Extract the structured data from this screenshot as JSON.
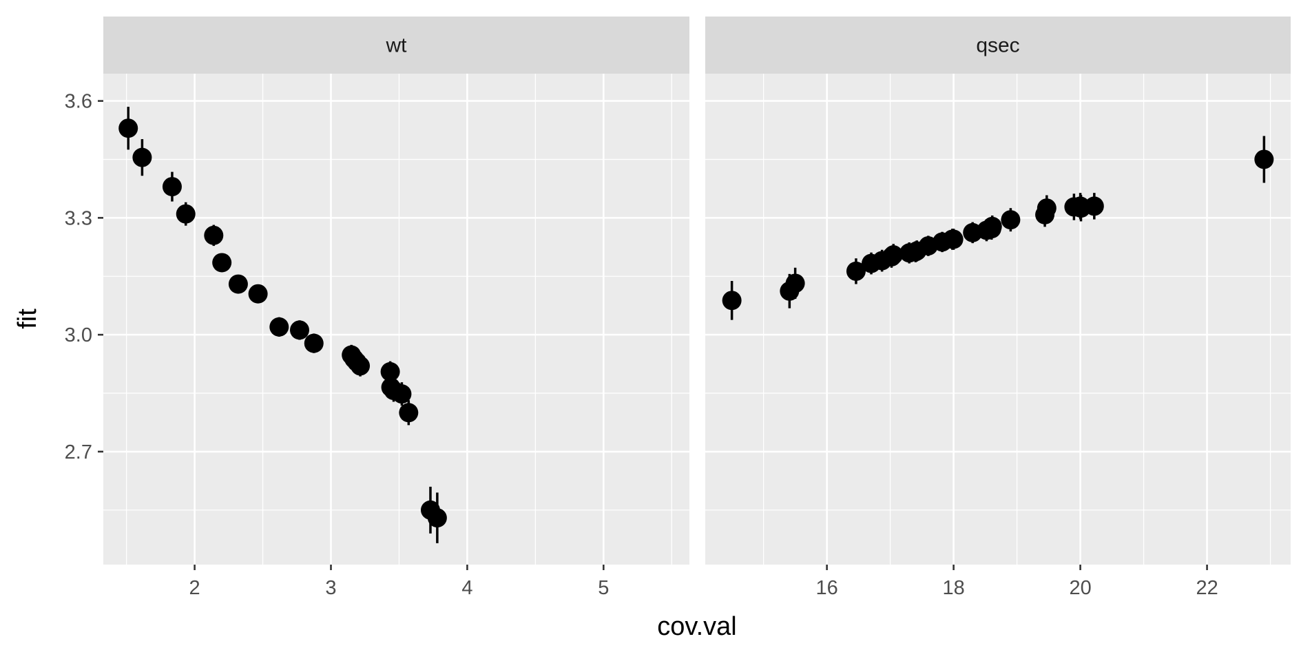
{
  "chart_data": {
    "type": "scatter",
    "facets": [
      {
        "name": "wt",
        "strip_label": "wt",
        "xlim": [
          1.33,
          5.63
        ],
        "x_ticks": [
          2,
          3,
          4,
          5
        ],
        "x_tick_labels": [
          "2",
          "3",
          "4",
          "5"
        ],
        "x_minor": [
          1.5,
          2.5,
          3.5,
          4.5,
          5.5
        ],
        "points": [
          {
            "x": 1.513,
            "y": 3.53,
            "lo": 3.475,
            "hi": 3.585
          },
          {
            "x": 1.615,
            "y": 3.455,
            "lo": 3.408,
            "hi": 3.502
          },
          {
            "x": 1.835,
            "y": 3.38,
            "lo": 3.342,
            "hi": 3.418
          },
          {
            "x": 1.935,
            "y": 3.31,
            "lo": 3.28,
            "hi": 3.34
          },
          {
            "x": 2.14,
            "y": 3.255,
            "lo": 3.228,
            "hi": 3.282
          },
          {
            "x": 2.2,
            "y": 3.185,
            "lo": 3.163,
            "hi": 3.207
          },
          {
            "x": 2.32,
            "y": 3.13,
            "lo": 3.11,
            "hi": 3.15
          },
          {
            "x": 2.465,
            "y": 3.105,
            "lo": 3.085,
            "hi": 3.125
          },
          {
            "x": 2.62,
            "y": 3.02,
            "lo": 2.995,
            "hi": 3.045
          },
          {
            "x": 2.77,
            "y": 3.012,
            "lo": 2.987,
            "hi": 3.037
          },
          {
            "x": 2.875,
            "y": 2.978,
            "lo": 2.953,
            "hi": 3.003
          },
          {
            "x": 3.15,
            "y": 2.948,
            "lo": 2.922,
            "hi": 2.974
          },
          {
            "x": 3.17,
            "y": 2.938,
            "lo": 2.912,
            "hi": 2.964
          },
          {
            "x": 3.19,
            "y": 2.93,
            "lo": 2.904,
            "hi": 2.956
          },
          {
            "x": 3.215,
            "y": 2.92,
            "lo": 2.893,
            "hi": 2.947
          },
          {
            "x": 3.435,
            "y": 2.905,
            "lo": 2.878,
            "hi": 2.932
          },
          {
            "x": 3.44,
            "y": 2.865,
            "lo": 2.836,
            "hi": 2.894
          },
          {
            "x": 3.46,
            "y": 2.857,
            "lo": 2.828,
            "hi": 2.886
          },
          {
            "x": 3.52,
            "y": 2.848,
            "lo": 2.818,
            "hi": 2.878
          },
          {
            "x": 3.57,
            "y": 2.8,
            "lo": 2.768,
            "hi": 2.832
          },
          {
            "x": 3.73,
            "y": 2.55,
            "lo": 2.49,
            "hi": 2.61
          },
          {
            "x": 3.78,
            "y": 2.53,
            "lo": 2.465,
            "hi": 2.595
          }
        ]
      },
      {
        "name": "qsec",
        "strip_label": "qsec",
        "xlim": [
          14.08,
          23.32
        ],
        "x_ticks": [
          16,
          18,
          20,
          22
        ],
        "x_tick_labels": [
          "16",
          "18",
          "20",
          "22"
        ],
        "x_minor": [
          15,
          17,
          19,
          21,
          23
        ],
        "points": [
          {
            "x": 14.5,
            "y": 3.088,
            "lo": 3.038,
            "hi": 3.138
          },
          {
            "x": 15.41,
            "y": 3.112,
            "lo": 3.068,
            "hi": 3.156
          },
          {
            "x": 15.5,
            "y": 3.132,
            "lo": 3.092,
            "hi": 3.172
          },
          {
            "x": 16.46,
            "y": 3.163,
            "lo": 3.13,
            "hi": 3.196
          },
          {
            "x": 16.7,
            "y": 3.183,
            "lo": 3.155,
            "hi": 3.211
          },
          {
            "x": 16.87,
            "y": 3.19,
            "lo": 3.162,
            "hi": 3.218
          },
          {
            "x": 17.02,
            "y": 3.2,
            "lo": 3.172,
            "hi": 3.228
          },
          {
            "x": 17.05,
            "y": 3.205,
            "lo": 3.177,
            "hi": 3.233
          },
          {
            "x": 17.3,
            "y": 3.21,
            "lo": 3.183,
            "hi": 3.237
          },
          {
            "x": 17.4,
            "y": 3.213,
            "lo": 3.186,
            "hi": 3.24
          },
          {
            "x": 17.42,
            "y": 3.215,
            "lo": 3.188,
            "hi": 3.242
          },
          {
            "x": 17.6,
            "y": 3.228,
            "lo": 3.202,
            "hi": 3.254
          },
          {
            "x": 17.82,
            "y": 3.238,
            "lo": 3.212,
            "hi": 3.264
          },
          {
            "x": 17.98,
            "y": 3.245,
            "lo": 3.218,
            "hi": 3.272
          },
          {
            "x": 18.0,
            "y": 3.245,
            "lo": 3.218,
            "hi": 3.272
          },
          {
            "x": 18.3,
            "y": 3.262,
            "lo": 3.235,
            "hi": 3.289
          },
          {
            "x": 18.52,
            "y": 3.268,
            "lo": 3.24,
            "hi": 3.296
          },
          {
            "x": 18.6,
            "y": 3.272,
            "lo": 3.244,
            "hi": 3.3
          },
          {
            "x": 18.61,
            "y": 3.278,
            "lo": 3.25,
            "hi": 3.306
          },
          {
            "x": 18.9,
            "y": 3.295,
            "lo": 3.265,
            "hi": 3.325
          },
          {
            "x": 19.44,
            "y": 3.308,
            "lo": 3.277,
            "hi": 3.339
          },
          {
            "x": 19.47,
            "y": 3.325,
            "lo": 3.292,
            "hi": 3.358
          },
          {
            "x": 19.9,
            "y": 3.328,
            "lo": 3.294,
            "hi": 3.362
          },
          {
            "x": 20.0,
            "y": 3.33,
            "lo": 3.296,
            "hi": 3.364
          },
          {
            "x": 20.01,
            "y": 3.325,
            "lo": 3.291,
            "hi": 3.359
          },
          {
            "x": 20.22,
            "y": 3.33,
            "lo": 3.296,
            "hi": 3.364
          },
          {
            "x": 22.9,
            "y": 3.45,
            "lo": 3.39,
            "hi": 3.51
          }
        ]
      }
    ],
    "ylim": [
      2.41,
      3.67
    ],
    "y_ticks": [
      2.7,
      3.0,
      3.3,
      3.6
    ],
    "y_tick_labels": [
      "2.7",
      "3.0",
      "3.3",
      "3.6"
    ],
    "y_minor": [
      2.55,
      2.85,
      3.15,
      3.45
    ],
    "xlabel": "cov.val",
    "ylabel": "fit",
    "grid": true,
    "legend": "none"
  }
}
